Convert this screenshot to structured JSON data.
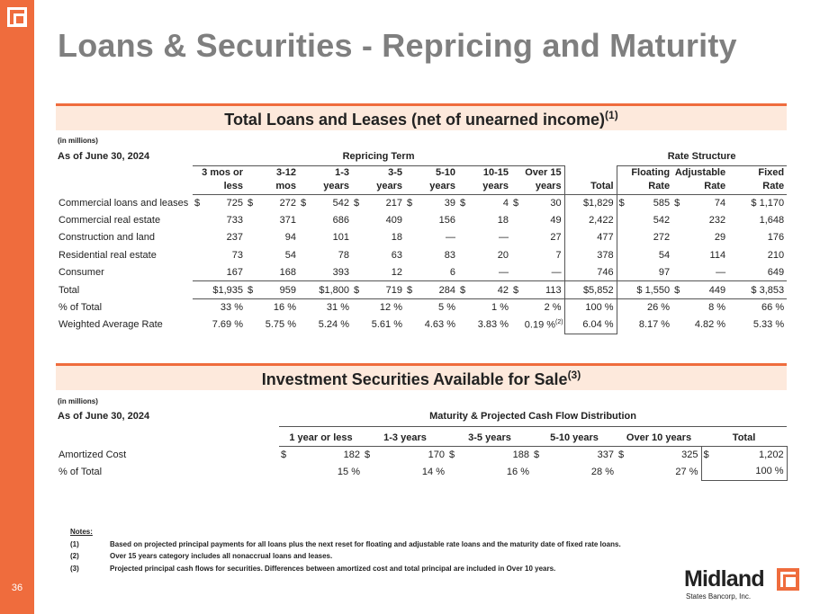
{
  "page": {
    "number": "36",
    "title": "Loans & Securities - Repricing and Maturity"
  },
  "brand": {
    "name": "Midland",
    "subtitle": "States Bancorp, Inc.",
    "accent_color": "#ef6c3d"
  },
  "loans": {
    "heading": "Total Loans and Leases (net of unearned income)",
    "heading_note": "(1)",
    "units": "(in millions)",
    "as_of": "As of June 30, 2024",
    "group_repricing": "Repricing Term",
    "group_rate": "Rate Structure",
    "columns": [
      {
        "l1": "3 mos or",
        "l2": "less"
      },
      {
        "l1": "3-12",
        "l2": "mos"
      },
      {
        "l1": "1-3",
        "l2": "years"
      },
      {
        "l1": "3-5",
        "l2": "years"
      },
      {
        "l1": "5-10",
        "l2": "years"
      },
      {
        "l1": "10-15",
        "l2": "years"
      },
      {
        "l1": "Over 15",
        "l2": "years"
      },
      {
        "l1": "",
        "l2": "Total"
      },
      {
        "l1": "Floating",
        "l2": "Rate"
      },
      {
        "l1": "Adjustable",
        "l2": "Rate"
      },
      {
        "l1": "Fixed",
        "l2": "Rate"
      }
    ],
    "rows": [
      {
        "label": "Commercial loans and leases",
        "dollar": true,
        "values": [
          "725",
          "272",
          "542",
          "217",
          "39",
          "4",
          "30",
          "$1,829",
          "585",
          "74",
          "$ 1,170"
        ]
      },
      {
        "label": "Commercial real estate",
        "dollar": false,
        "values": [
          "733",
          "371",
          "686",
          "409",
          "156",
          "18",
          "49",
          "2,422",
          "542",
          "232",
          "1,648"
        ]
      },
      {
        "label": "Construction and land",
        "dollar": false,
        "values": [
          "237",
          "94",
          "101",
          "18",
          "—",
          "—",
          "27",
          "477",
          "272",
          "29",
          "176"
        ]
      },
      {
        "label": "Residential real estate",
        "dollar": false,
        "values": [
          "73",
          "54",
          "78",
          "63",
          "83",
          "20",
          "7",
          "378",
          "54",
          "114",
          "210"
        ]
      },
      {
        "label": "Consumer",
        "dollar": false,
        "values": [
          "167",
          "168",
          "393",
          "12",
          "6",
          "—",
          "—",
          "746",
          "97",
          "—",
          "649"
        ]
      },
      {
        "label": "Total",
        "dollar": true,
        "values": [
          "$1,935",
          "959",
          "$1,800",
          "719",
          "284",
          "42",
          "113",
          "$5,852",
          "$ 1,550",
          "449",
          "$ 3,853"
        ]
      }
    ],
    "pct_row": {
      "label": "% of Total",
      "values": [
        "33 %",
        "16 %",
        "31 %",
        "12 %",
        "5 %",
        "1 %",
        "2 %",
        "100 %",
        "26 %",
        "8 %",
        "66 %"
      ]
    },
    "rate_row": {
      "label": "Weighted Average Rate",
      "values": [
        "7.69 %",
        "5.75 %",
        "5.24 %",
        "5.61 %",
        "4.63 %",
        "3.83 %",
        "0.19 %",
        "6.04 %",
        "8.17 %",
        "4.82 %",
        "5.33 %"
      ],
      "note": "(2)"
    }
  },
  "securities": {
    "heading": "Investment Securities Available for Sale",
    "heading_note": "(3)",
    "units": "(in millions)",
    "as_of": "As of June 30, 2024",
    "group": "Maturity & Projected Cash Flow Distribution",
    "columns": [
      "1 year or less",
      "1-3 years",
      "3-5 years",
      "5-10 years",
      "Over 10 years",
      "Total"
    ],
    "rows": [
      {
        "label": "Amortized Cost",
        "values": [
          "182",
          "170",
          "188",
          "337",
          "325",
          "1,202"
        ]
      },
      {
        "label": "% of Total",
        "values": [
          "15 %",
          "14 %",
          "16 %",
          "28 %",
          "27 %",
          "100 %"
        ]
      }
    ]
  },
  "notes": {
    "heading": "Notes:",
    "items": [
      {
        "key": "(1)",
        "text": "Based on projected principal payments for all loans plus the next reset for floating and adjustable rate loans and the maturity date of fixed rate loans."
      },
      {
        "key": "(2)",
        "text": "Over 15 years category includes all nonaccrual loans and leases."
      },
      {
        "key": "(3)",
        "text": "Projected principal cash flows for securities.  Differences between amortized cost and total principal are included in Over 10 years."
      }
    ]
  }
}
